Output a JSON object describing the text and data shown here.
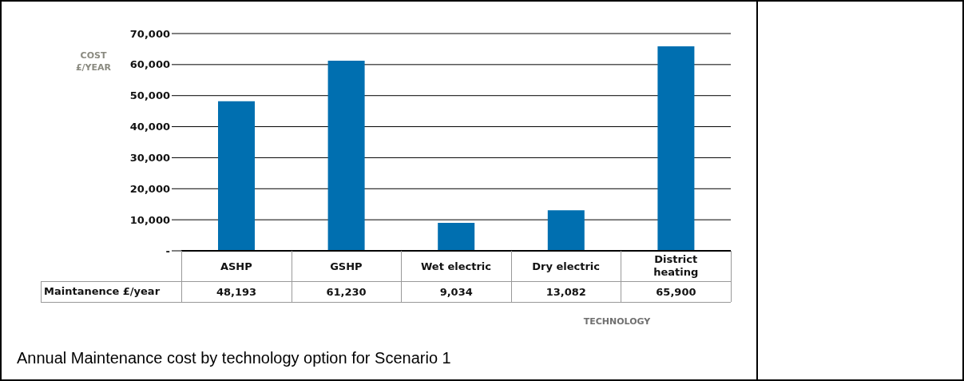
{
  "chart_data": {
    "type": "bar",
    "categories": [
      "ASHP",
      "GSHP",
      "Wet electric",
      "Dry electric",
      "District heating"
    ],
    "series": [
      {
        "name": "Maintanence £/year",
        "color": "#006fb0",
        "values": [
          48193,
          61230,
          9034,
          13082,
          65900
        ],
        "value_labels": [
          "48,193",
          "61,230",
          "9,034",
          "13,082",
          "65,900"
        ]
      }
    ],
    "ylabel": "COST £/YEAR",
    "xlabel": "TECHNOLOGY",
    "ylim": [
      0,
      70000
    ],
    "yticks": [
      {
        "value": 0,
        "label": "-"
      },
      {
        "value": 10000,
        "label": "10,000"
      },
      {
        "value": 20000,
        "label": "20,000"
      },
      {
        "value": 30000,
        "label": "30,000"
      },
      {
        "value": 40000,
        "label": "40,000"
      },
      {
        "value": 50000,
        "label": "50,000"
      },
      {
        "value": 60000,
        "label": "60,000"
      },
      {
        "value": 70000,
        "label": "70,000"
      }
    ],
    "grid": "y",
    "annotations": [
      "Annual Maintenance cost by technology option for Scenario 1"
    ]
  }
}
